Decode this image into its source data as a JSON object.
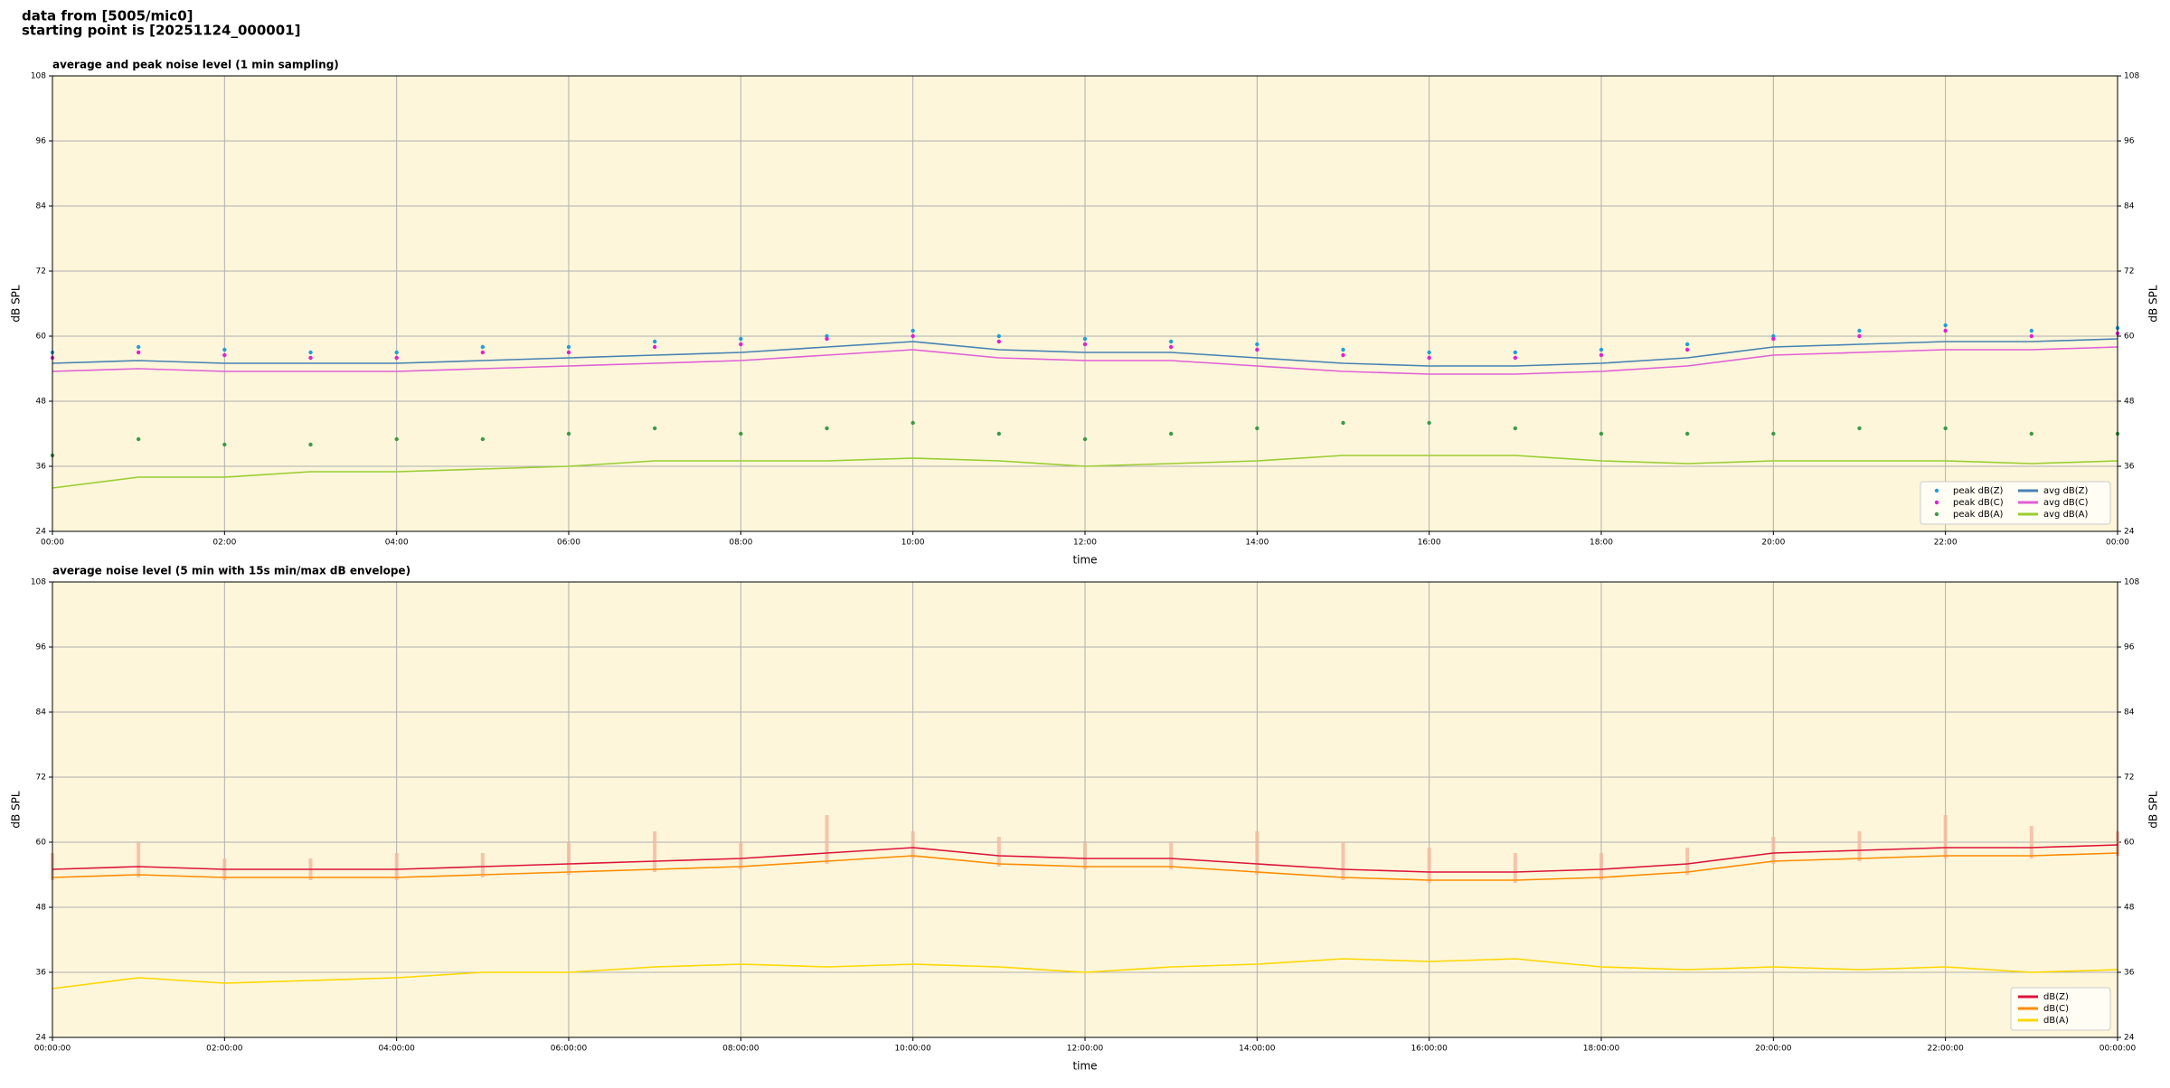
{
  "header": [
    "data from [5005/mic0]",
    "starting point is [20251124_000001]"
  ],
  "chart_data": [
    {
      "type": "line",
      "title": "average and peak noise level (1 min sampling)",
      "xlabel": "time",
      "ylabel": "dB SPL",
      "background": "#fdf6da",
      "grid": true,
      "legend": "lower right",
      "legend_columns": 2,
      "x": [
        0,
        1,
        2,
        3,
        4,
        5,
        6,
        7,
        8,
        9,
        10,
        11,
        12,
        13,
        14,
        15,
        16,
        17,
        18,
        19,
        20,
        21,
        22,
        23,
        24
      ],
      "xlim": [
        0,
        24
      ],
      "xticks": [
        {
          "value": 0,
          "label": "00:00"
        },
        {
          "value": 2,
          "label": "02:00"
        },
        {
          "value": 4,
          "label": "04:00"
        },
        {
          "value": 6,
          "label": "06:00"
        },
        {
          "value": 8,
          "label": "08:00"
        },
        {
          "value": 10,
          "label": "10:00"
        },
        {
          "value": 12,
          "label": "12:00"
        },
        {
          "value": 14,
          "label": "14:00"
        },
        {
          "value": 16,
          "label": "16:00"
        },
        {
          "value": 18,
          "label": "18:00"
        },
        {
          "value": 20,
          "label": "20:00"
        },
        {
          "value": 22,
          "label": "22:00"
        },
        {
          "value": 24,
          "label": "00:00"
        }
      ],
      "ylim": [
        24,
        108
      ],
      "yticks": [
        24,
        36,
        48,
        60,
        72,
        84,
        96,
        108
      ],
      "series": [
        {
          "name": "peak dB(Z)",
          "mark": "scatter",
          "color": "#1f9fd8",
          "values": [
            57,
            58,
            57.5,
            57,
            57,
            58,
            58,
            59,
            59.5,
            60,
            61,
            60,
            59.5,
            59,
            58.5,
            57.5,
            57,
            57,
            57.5,
            58.5,
            60,
            61,
            62,
            61,
            61.5
          ]
        },
        {
          "name": "peak dB(C)",
          "mark": "scatter",
          "color": "#e020d0",
          "values": [
            56,
            57,
            56.5,
            56,
            56,
            57,
            57,
            58,
            58.5,
            59.5,
            60,
            59,
            58.5,
            58,
            57.5,
            56.5,
            56,
            56,
            56.5,
            57.5,
            59.5,
            60,
            61,
            60,
            60.5
          ]
        },
        {
          "name": "peak dB(A)",
          "mark": "scatter",
          "color": "#3a9a4a",
          "values": [
            38,
            41,
            40,
            40,
            41,
            41,
            42,
            43,
            42,
            43,
            44,
            42,
            41,
            42,
            43,
            44,
            44,
            43,
            42,
            42,
            42,
            43,
            43,
            42,
            42
          ]
        },
        {
          "name": "avg dB(Z)",
          "mark": "line",
          "color": "#4682b4",
          "values": [
            55,
            55.5,
            55,
            55,
            55,
            55.5,
            56,
            56.5,
            57,
            58,
            59,
            57.5,
            57,
            57,
            56,
            55,
            54.5,
            54.5,
            55,
            56,
            58,
            58.5,
            59,
            59,
            59.5
          ]
        },
        {
          "name": "avg dB(C)",
          "mark": "line",
          "color": "#e060d8",
          "values": [
            53.5,
            54,
            53.5,
            53.5,
            53.5,
            54,
            54.5,
            55,
            55.5,
            56.5,
            57.5,
            56,
            55.5,
            55.5,
            54.5,
            53.5,
            53,
            53,
            53.5,
            54.5,
            56.5,
            57,
            57.5,
            57.5,
            58
          ]
        },
        {
          "name": "avg dB(A)",
          "mark": "line",
          "color": "#9acd32",
          "values": [
            32,
            34,
            34,
            35,
            35,
            35.5,
            36,
            37,
            37,
            37,
            37.5,
            37,
            36,
            36.5,
            37,
            38,
            38,
            38,
            37,
            36.5,
            37,
            37,
            37,
            36.5,
            37
          ]
        }
      ]
    },
    {
      "type": "line",
      "title": "average noise level (5 min with 15s min/max dB envelope)",
      "xlabel": "time",
      "ylabel": "dB SPL",
      "background": "#fdf6da",
      "grid": true,
      "legend": "lower right",
      "legend_columns": 1,
      "x": [
        0,
        1,
        2,
        3,
        4,
        5,
        6,
        7,
        8,
        9,
        10,
        11,
        12,
        13,
        14,
        15,
        16,
        17,
        18,
        19,
        20,
        21,
        22,
        23,
        24
      ],
      "xlim": [
        0,
        24
      ],
      "xticks": [
        {
          "value": 0,
          "label": "00:00:00"
        },
        {
          "value": 2,
          "label": "02:00:00"
        },
        {
          "value": 4,
          "label": "04:00:00"
        },
        {
          "value": 6,
          "label": "06:00:00"
        },
        {
          "value": 8,
          "label": "08:00:00"
        },
        {
          "value": 10,
          "label": "10:00:00"
        },
        {
          "value": 12,
          "label": "12:00:00"
        },
        {
          "value": 14,
          "label": "14:00:00"
        },
        {
          "value": 16,
          "label": "16:00:00"
        },
        {
          "value": 18,
          "label": "18:00:00"
        },
        {
          "value": 20,
          "label": "20:00:00"
        },
        {
          "value": 22,
          "label": "22:00:00"
        },
        {
          "value": 24,
          "label": "00:00:00"
        }
      ],
      "ylim": [
        24,
        108
      ],
      "yticks": [
        24,
        36,
        48,
        60,
        72,
        84,
        96,
        108
      ],
      "series": [
        {
          "name": "dB(Z)",
          "mark": "line",
          "color": "#dc143c",
          "values": [
            55,
            55.5,
            55,
            55,
            55,
            55.5,
            56,
            56.5,
            57,
            58,
            59,
            57.5,
            57,
            57,
            56,
            55,
            54.5,
            54.5,
            55,
            56,
            58,
            58.5,
            59,
            59,
            59.5
          ],
          "envelope_color": "#f4b8a0",
          "envelope_min": [
            53,
            53.5,
            53,
            53,
            53,
            53.5,
            54,
            54.5,
            55,
            56,
            57,
            55.5,
            55,
            55,
            54,
            53,
            52.5,
            52.5,
            53,
            54,
            56,
            56.5,
            57,
            57,
            57.5
          ],
          "envelope_max": [
            58,
            60,
            57,
            57,
            58,
            58,
            60,
            62,
            60,
            65,
            62,
            61,
            60,
            60,
            62,
            60,
            59,
            58,
            58,
            59,
            61,
            62,
            65,
            63,
            62
          ]
        },
        {
          "name": "dB(C)",
          "mark": "line",
          "color": "#ff8c00",
          "values": [
            53.5,
            54,
            53.5,
            53.5,
            53.5,
            54,
            54.5,
            55,
            55.5,
            56.5,
            57.5,
            56,
            55.5,
            55.5,
            54.5,
            53.5,
            53,
            53,
            53.5,
            54.5,
            56.5,
            57,
            57.5,
            57.5,
            58
          ]
        },
        {
          "name": "dB(A)",
          "mark": "line",
          "color": "#ffd700",
          "values": [
            33,
            35,
            34,
            34.5,
            35,
            36,
            36,
            37,
            37.5,
            37,
            37.5,
            37,
            36,
            37,
            37.5,
            38.5,
            38,
            38.5,
            37,
            36.5,
            37,
            36.5,
            37,
            36,
            36.5
          ]
        }
      ]
    }
  ]
}
